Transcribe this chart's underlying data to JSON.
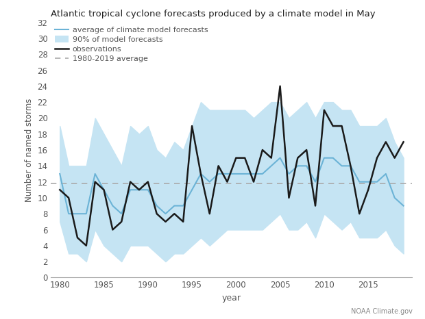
{
  "title": "Atlantic tropical cyclone forecasts produced by a climate model in May",
  "xlabel": "year",
  "ylabel": "Number of named storms",
  "years": [
    1980,
    1981,
    1982,
    1983,
    1984,
    1985,
    1986,
    1987,
    1988,
    1989,
    1990,
    1991,
    1992,
    1993,
    1994,
    1995,
    1996,
    1997,
    1998,
    1999,
    2000,
    2001,
    2002,
    2003,
    2004,
    2005,
    2006,
    2007,
    2008,
    2009,
    2010,
    2011,
    2012,
    2013,
    2014,
    2015,
    2016,
    2017,
    2018,
    2019
  ],
  "observations": [
    11,
    10,
    5,
    4,
    12,
    11,
    6,
    7,
    12,
    11,
    12,
    8,
    7,
    8,
    7,
    19,
    13,
    8,
    14,
    12,
    15,
    15,
    12,
    16,
    15,
    24,
    10,
    15,
    16,
    9,
    21,
    19,
    19,
    14,
    8,
    11,
    15,
    17,
    15,
    17
  ],
  "model_avg": [
    13,
    8,
    8,
    8,
    13,
    11,
    9,
    8,
    11,
    11,
    11,
    9,
    8,
    9,
    9,
    11,
    13,
    12,
    13,
    13,
    13,
    13,
    13,
    13,
    14,
    15,
    13,
    14,
    14,
    12,
    15,
    15,
    14,
    14,
    12,
    12,
    12,
    13,
    10,
    9
  ],
  "model_low": [
    7,
    3,
    3,
    2,
    6,
    4,
    3,
    2,
    4,
    4,
    4,
    3,
    2,
    3,
    3,
    4,
    5,
    4,
    5,
    6,
    6,
    6,
    6,
    6,
    7,
    8,
    6,
    6,
    7,
    5,
    8,
    7,
    6,
    7,
    5,
    5,
    5,
    6,
    4,
    3
  ],
  "model_high": [
    19,
    14,
    14,
    14,
    20,
    18,
    16,
    14,
    19,
    18,
    19,
    16,
    15,
    17,
    16,
    19,
    22,
    21,
    21,
    21,
    21,
    21,
    20,
    21,
    22,
    22,
    20,
    21,
    22,
    20,
    22,
    22,
    21,
    21,
    19,
    19,
    19,
    20,
    17,
    15
  ],
  "avg_line": 11.8,
  "line_color": "#6bb3d6",
  "shade_color": "#c5e4f3",
  "obs_color": "#1a1a1a",
  "avg_color": "#aaaaaa",
  "ylim": [
    0,
    32
  ],
  "yticks": [
    0,
    2,
    4,
    6,
    8,
    10,
    12,
    14,
    16,
    18,
    20,
    22,
    24,
    26,
    28,
    30,
    32
  ],
  "xticks": [
    1980,
    1985,
    1990,
    1995,
    2000,
    2005,
    2010,
    2015
  ],
  "credit1": "NOAA Climate.gov",
  "background_color": "#ffffff"
}
